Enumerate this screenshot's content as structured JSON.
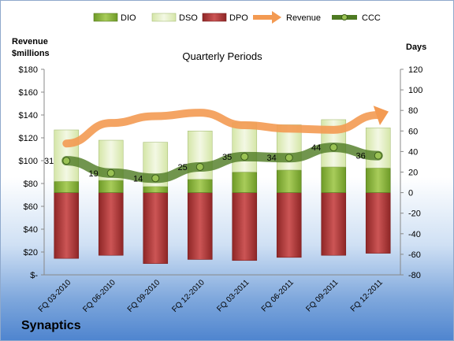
{
  "company": "Synaptics",
  "chart_data": {
    "type": "bar",
    "title": "Quarterly Periods",
    "left_axis_label": [
      "Revenue",
      "$millions"
    ],
    "right_axis_label": "Days",
    "left_axis": {
      "min": 0,
      "max": 180,
      "step": 20,
      "ticks": [
        "$-",
        "$20",
        "$40",
        "$60",
        "$80",
        "$100",
        "$120",
        "$140",
        "$160",
        "$180"
      ]
    },
    "right_axis": {
      "min": -80,
      "max": 120,
      "step": 20,
      "ticks": [
        "-80",
        "-60",
        "-40",
        "-20",
        "0",
        "20",
        "40",
        "60",
        "80",
        "100",
        "120"
      ]
    },
    "categories": [
      "FQ 03-2010",
      "FQ 06-2010",
      "FQ 09-2010",
      "FQ 12-2010",
      "FQ 03-2011",
      "FQ 06-2011",
      "FQ 09-2011",
      "FQ 12-2011"
    ],
    "legend": {
      "position": "top",
      "entries": [
        "DIO",
        "DSO",
        "DPO",
        "Revenue",
        "CCC"
      ]
    },
    "series": [
      {
        "name": "DIO",
        "unit": "days",
        "color": "#8db33e",
        "values": [
          11,
          12,
          6,
          13,
          20,
          22,
          25,
          24
        ]
      },
      {
        "name": "DSO",
        "unit": "days",
        "color": "#e4efc6",
        "values": [
          50,
          39,
          43,
          47,
          48,
          44,
          46,
          39
        ]
      },
      {
        "name": "DPO",
        "unit": "days",
        "color": "#b03a3a",
        "values": [
          -64,
          -61,
          -69,
          -65,
          -66,
          -63,
          -61,
          -59
        ]
      },
      {
        "name": "Revenue",
        "unit": "$millions",
        "color": "#f4a15a",
        "values": [
          115,
          133,
          139,
          142,
          131,
          128,
          127,
          140
        ]
      },
      {
        "name": "CCC",
        "unit": "days",
        "color": "#4f7a23",
        "values": [
          31,
          19,
          14,
          25,
          35,
          34,
          44,
          36
        ]
      }
    ],
    "ccc_labels": [
      "31",
      "19",
      "14",
      "25",
      "35",
      "34",
      "44",
      "36"
    ],
    "grid": false
  }
}
